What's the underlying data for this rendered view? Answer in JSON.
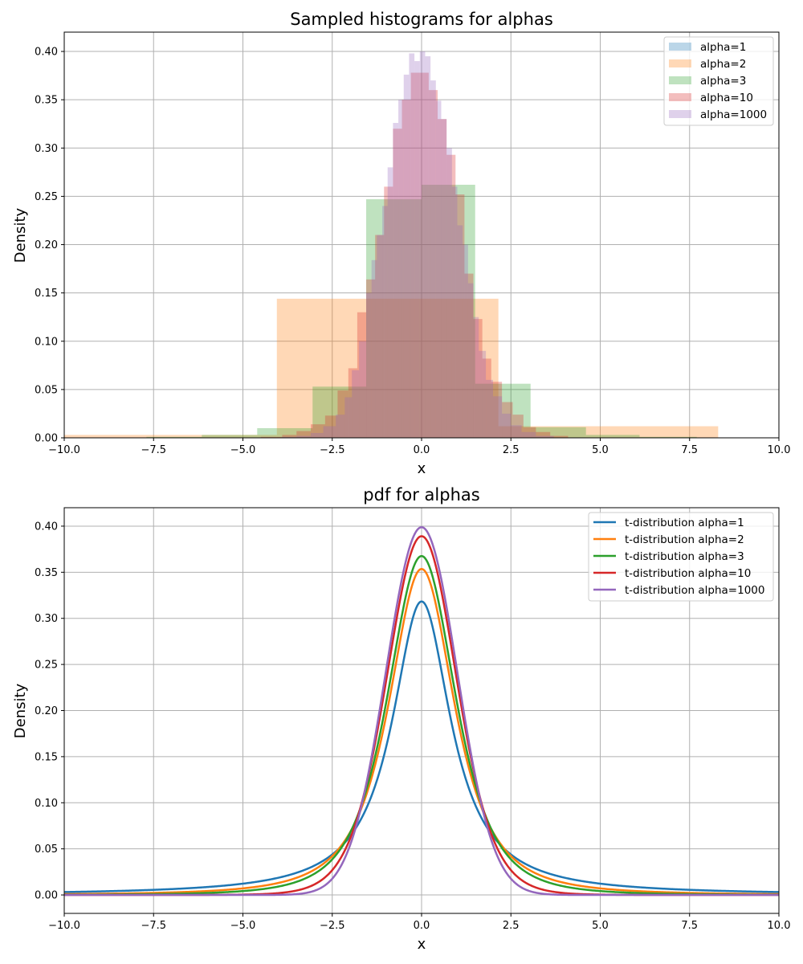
{
  "chart_data": [
    {
      "type": "histogram",
      "title": "Sampled histograms for alphas",
      "xlabel": "x",
      "ylabel": "Density",
      "xlim": [
        -10,
        10
      ],
      "ylim": [
        0,
        0.42
      ],
      "xticks": [
        -10,
        -7.5,
        -5,
        -2.5,
        0,
        2.5,
        5,
        7.5,
        10
      ],
      "xtick_labels": [
        "−10.0",
        "−7.5",
        "−5.0",
        "−2.5",
        "0.0",
        "2.5",
        "5.0",
        "7.5",
        "10.0"
      ],
      "yticks": [
        0,
        0.05,
        0.1,
        0.15,
        0.2,
        0.25,
        0.3,
        0.35,
        0.4
      ],
      "ytick_labels": [
        "0.00",
        "0.05",
        "0.10",
        "0.15",
        "0.20",
        "0.25",
        "0.30",
        "0.35",
        "0.40"
      ],
      "grid": true,
      "legend_position": "top-right",
      "opacity": 0.3,
      "series": [
        {
          "name": "alpha=1",
          "color": "#1f77b4",
          "bins": [
            [
              -12.0,
              -10.0,
              0.002
            ]
          ]
        },
        {
          "name": "alpha=2",
          "color": "#ff7f0e",
          "bins": [
            [
              -12.0,
              -10.0,
              0.003
            ],
            [
              -10.0,
              -4.05,
              0.003
            ],
            [
              -4.05,
              2.15,
              0.144
            ],
            [
              2.15,
              8.3,
              0.012
            ]
          ]
        },
        {
          "name": "alpha=3",
          "color": "#2ca02c",
          "bins": [
            [
              -7.7,
              -6.15,
              0.001
            ],
            [
              -6.15,
              -4.6,
              0.003
            ],
            [
              -4.6,
              -3.05,
              0.01
            ],
            [
              -3.05,
              -1.55,
              0.053
            ],
            [
              -1.55,
              0.0,
              0.247
            ],
            [
              0.0,
              1.5,
              0.262
            ],
            [
              1.5,
              3.05,
              0.056
            ],
            [
              3.05,
              4.6,
              0.011
            ],
            [
              4.6,
              6.1,
              0.003
            ],
            [
              6.1,
              7.7,
              0.001
            ]
          ]
        },
        {
          "name": "alpha=10",
          "color": "#d62728",
          "bins": [
            [
              -4.5,
              -3.9,
              0.001
            ],
            [
              -3.9,
              -3.5,
              0.003
            ],
            [
              -3.5,
              -3.1,
              0.007
            ],
            [
              -3.1,
              -2.7,
              0.014
            ],
            [
              -2.7,
              -2.35,
              0.023
            ],
            [
              -2.35,
              -2.05,
              0.049
            ],
            [
              -2.05,
              -1.8,
              0.072
            ],
            [
              -1.8,
              -1.55,
              0.13
            ],
            [
              -1.55,
              -1.3,
              0.164
            ],
            [
              -1.3,
              -1.05,
              0.21
            ],
            [
              -1.05,
              -0.8,
              0.26
            ],
            [
              -0.8,
              -0.55,
              0.32
            ],
            [
              -0.55,
              -0.3,
              0.35
            ],
            [
              -0.3,
              -0.05,
              0.378
            ],
            [
              -0.05,
              0.2,
              0.378
            ],
            [
              0.2,
              0.45,
              0.36
            ],
            [
              0.45,
              0.7,
              0.33
            ],
            [
              0.7,
              0.95,
              0.293
            ],
            [
              0.95,
              1.2,
              0.252
            ],
            [
              1.2,
              1.45,
              0.17
            ],
            [
              1.45,
              1.7,
              0.123
            ],
            [
              1.7,
              1.95,
              0.082
            ],
            [
              1.95,
              2.25,
              0.058
            ],
            [
              2.25,
              2.55,
              0.037
            ],
            [
              2.55,
              2.85,
              0.024
            ],
            [
              2.85,
              3.2,
              0.011
            ],
            [
              3.2,
              3.6,
              0.006
            ],
            [
              3.6,
              4.1,
              0.002
            ]
          ]
        },
        {
          "name": "alpha=1000",
          "color": "#9467bd",
          "bins": [
            [
              -3.9,
              -3.5,
              0.001
            ],
            [
              -3.5,
              -3.1,
              0.002
            ],
            [
              -3.1,
              -2.75,
              0.005
            ],
            [
              -2.75,
              -2.4,
              0.012
            ],
            [
              -2.4,
              -2.15,
              0.024
            ],
            [
              -2.15,
              -1.95,
              0.042
            ],
            [
              -1.95,
              -1.75,
              0.07
            ],
            [
              -1.75,
              -1.55,
              0.1
            ],
            [
              -1.55,
              -1.4,
              0.15
            ],
            [
              -1.4,
              -1.25,
              0.184
            ],
            [
              -1.25,
              -1.1,
              0.21
            ],
            [
              -1.1,
              -0.95,
              0.24
            ],
            [
              -0.95,
              -0.8,
              0.28
            ],
            [
              -0.8,
              -0.65,
              0.326
            ],
            [
              -0.65,
              -0.5,
              0.35
            ],
            [
              -0.5,
              -0.35,
              0.376
            ],
            [
              -0.35,
              -0.2,
              0.398
            ],
            [
              -0.2,
              -0.05,
              0.39
            ],
            [
              -0.05,
              0.1,
              0.4
            ],
            [
              0.1,
              0.25,
              0.395
            ],
            [
              0.25,
              0.4,
              0.37
            ],
            [
              0.4,
              0.55,
              0.349
            ],
            [
              0.55,
              0.7,
              0.33
            ],
            [
              0.7,
              0.85,
              0.3
            ],
            [
              0.85,
              1.0,
              0.26
            ],
            [
              1.0,
              1.15,
              0.22
            ],
            [
              1.15,
              1.3,
              0.2
            ],
            [
              1.3,
              1.45,
              0.16
            ],
            [
              1.45,
              1.6,
              0.125
            ],
            [
              1.6,
              1.8,
              0.09
            ],
            [
              1.8,
              2.0,
              0.06
            ],
            [
              2.0,
              2.25,
              0.043
            ],
            [
              2.25,
              2.5,
              0.025
            ],
            [
              2.5,
              2.8,
              0.013
            ],
            [
              2.8,
              3.2,
              0.006
            ],
            [
              3.2,
              3.7,
              0.002
            ]
          ]
        }
      ]
    },
    {
      "type": "line",
      "title": "pdf for alphas",
      "xlabel": "x",
      "ylabel": "Density",
      "xlim": [
        -10,
        10
      ],
      "ylim": [
        -0.02,
        0.42
      ],
      "xticks": [
        -10,
        -7.5,
        -5,
        -2.5,
        0,
        2.5,
        5,
        7.5,
        10
      ],
      "xtick_labels": [
        "−10.0",
        "−7.5",
        "−5.0",
        "−2.5",
        "0.0",
        "2.5",
        "5.0",
        "7.5",
        "10.0"
      ],
      "yticks": [
        0,
        0.05,
        0.1,
        0.15,
        0.2,
        0.25,
        0.3,
        0.35,
        0.4
      ],
      "ytick_labels": [
        "0.00",
        "0.05",
        "0.10",
        "0.15",
        "0.20",
        "0.25",
        "0.30",
        "0.35",
        "0.40"
      ],
      "grid": true,
      "legend_position": "top-right",
      "function": "Student t probability density function, degrees of freedom = alpha",
      "x_sample_range": [
        -10,
        10
      ],
      "series": [
        {
          "name": "t-distribution alpha=1",
          "alpha": 1,
          "color": "#1f77b4"
        },
        {
          "name": "t-distribution alpha=2",
          "alpha": 2,
          "color": "#ff7f0e"
        },
        {
          "name": "t-distribution alpha=3",
          "alpha": 3,
          "color": "#2ca02c"
        },
        {
          "name": "t-distribution alpha=10",
          "alpha": 10,
          "color": "#d62728"
        },
        {
          "name": "t-distribution alpha=1000",
          "alpha": 1000,
          "color": "#9467bd"
        }
      ]
    }
  ]
}
